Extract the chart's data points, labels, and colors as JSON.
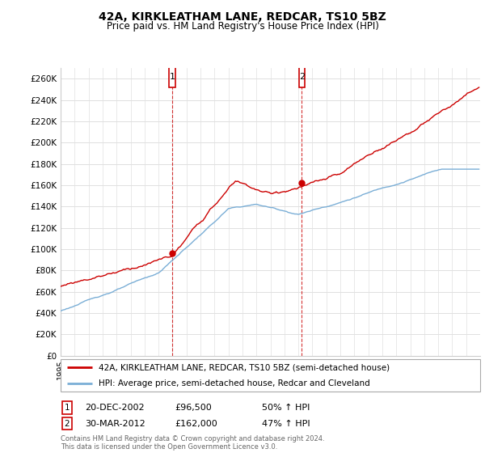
{
  "title": "42A, KIRKLEATHAM LANE, REDCAR, TS10 5BZ",
  "subtitle": "Price paid vs. HM Land Registry's House Price Index (HPI)",
  "ylabel_ticks": [
    "£0",
    "£20K",
    "£40K",
    "£60K",
    "£80K",
    "£100K",
    "£120K",
    "£140K",
    "£160K",
    "£180K",
    "£200K",
    "£220K",
    "£240K",
    "£260K"
  ],
  "ytick_values": [
    0,
    20000,
    40000,
    60000,
    80000,
    100000,
    120000,
    140000,
    160000,
    180000,
    200000,
    220000,
    240000,
    260000
  ],
  "ylim": [
    0,
    270000
  ],
  "xlim_start": 1995.0,
  "xlim_end": 2025.0,
  "transaction1_year": 2002.97,
  "transaction1_price": 96500,
  "transaction2_year": 2012.25,
  "transaction2_price": 162000,
  "line1_color": "#cc0000",
  "line2_color": "#7aaed6",
  "legend_label1": "42A, KIRKLEATHAM LANE, REDCAR, TS10 5BZ (semi-detached house)",
  "legend_label2": "HPI: Average price, semi-detached house, Redcar and Cleveland",
  "annotation1_date": "20-DEC-2002",
  "annotation1_price": "£96,500",
  "annotation1_pct": "50% ↑ HPI",
  "annotation2_date": "30-MAR-2012",
  "annotation2_price": "£162,000",
  "annotation2_pct": "47% ↑ HPI",
  "footer": "Contains HM Land Registry data © Crown copyright and database right 2024.\nThis data is licensed under the Open Government Licence v3.0.",
  "background_color": "#ffffff",
  "grid_color": "#e0e0e0"
}
